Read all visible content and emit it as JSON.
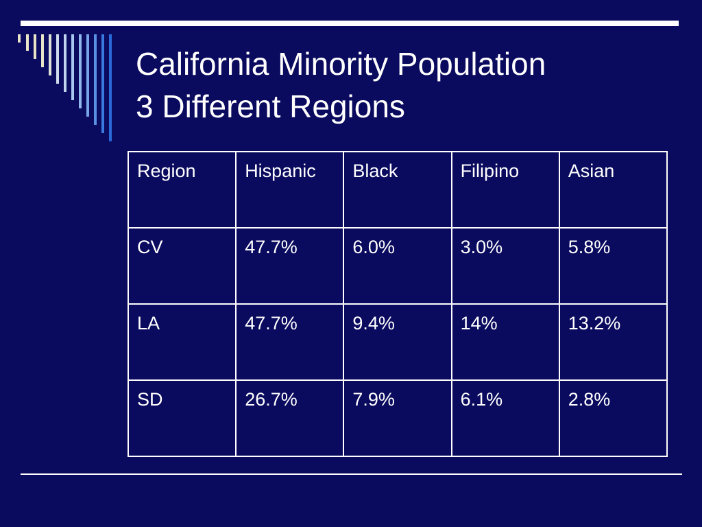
{
  "slide": {
    "title_line1": "California Minority Population",
    "title_line2": "3 Different Regions"
  },
  "table": {
    "headers": [
      "Region",
      "Hispanic",
      "Black",
      "Filipino",
      "Asian"
    ],
    "rows": [
      [
        "CV",
        "47.7%",
        "6.0%",
        "3.0%",
        "5.8%"
      ],
      [
        "LA",
        "47.7%",
        "9.4%",
        "14%",
        "13.2%"
      ],
      [
        "SD",
        "26.7%",
        "7.9%",
        "6.1%",
        "2.8%"
      ]
    ]
  },
  "colors": {
    "background": "#0a0a5e",
    "text": "#ffffff",
    "decor_light": "#e8e4c8",
    "decor_mid": "#a8c8f0",
    "decor_blue": "#3a7ae0"
  }
}
